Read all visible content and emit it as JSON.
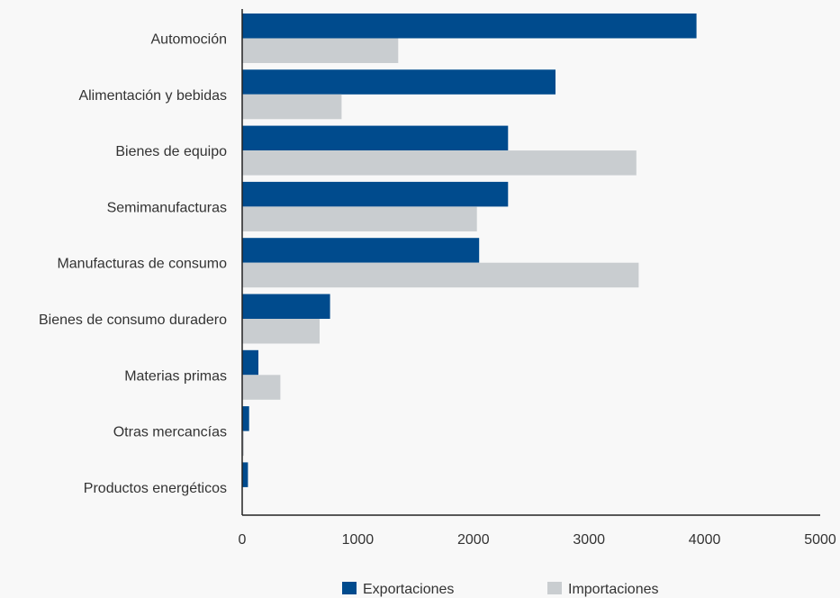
{
  "chart_data": {
    "type": "bar",
    "orientation": "horizontal",
    "categories": [
      "Automoción",
      "Alimentación y bebidas",
      "Bienes de equipo",
      "Semimanufacturas",
      "Manufacturas de consumo",
      "Bienes de consumo duradero",
      "Materias primas",
      "Otras mercancías",
      "Productos energéticos"
    ],
    "series": [
      {
        "name": "Exportaciones",
        "color": "#004b8d",
        "values": [
          3930,
          2710,
          2300,
          2300,
          2050,
          760,
          140,
          60,
          50
        ]
      },
      {
        "name": "Importaciones",
        "color": "#c9cdd0",
        "values": [
          1350,
          860,
          3410,
          2030,
          3430,
          670,
          330,
          15,
          0
        ]
      }
    ],
    "x_ticks": [
      "0",
      "1000",
      "2000",
      "3000",
      "4000",
      "5000"
    ],
    "xlim": [
      0,
      5000
    ],
    "grid": false,
    "legend_position": "bottom",
    "title": "",
    "xlabel": "",
    "ylabel": ""
  }
}
